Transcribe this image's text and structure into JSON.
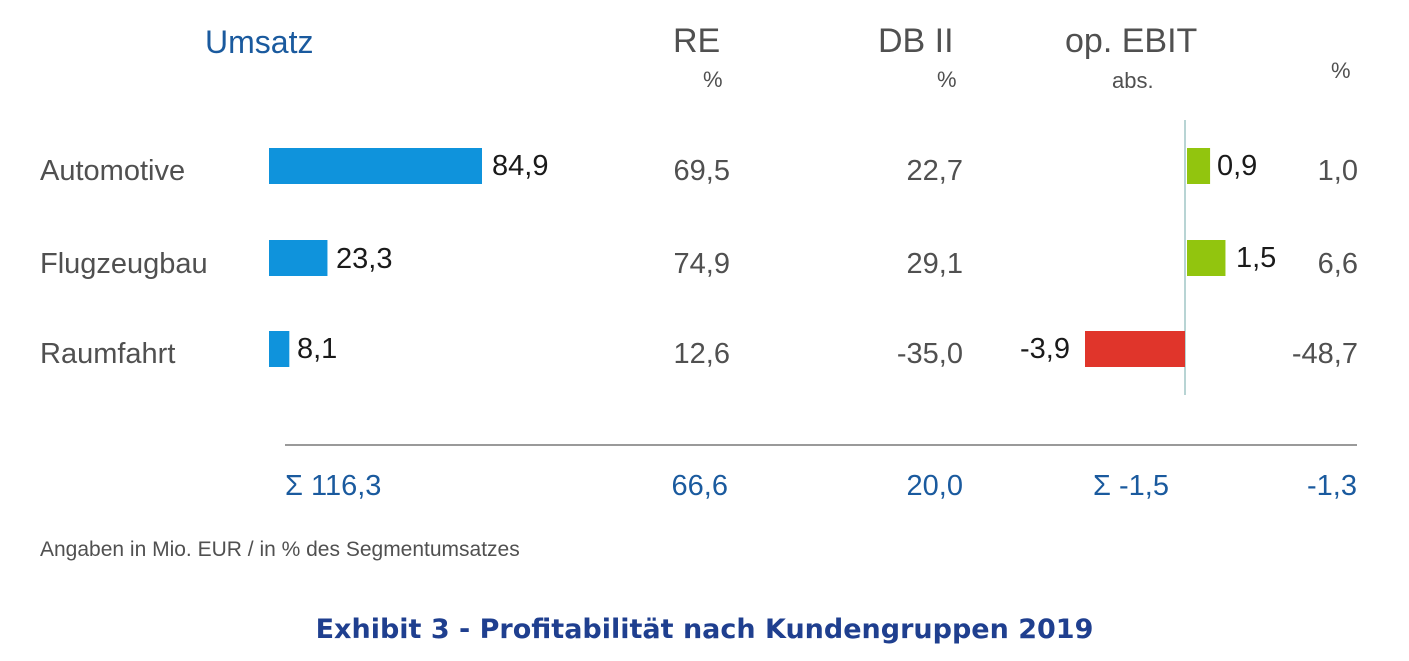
{
  "chart_data": {
    "type": "table",
    "headers": {
      "umsatz": "Umsatz",
      "re": "RE",
      "re_unit": "%",
      "db": "DB II",
      "db_unit": "%",
      "ebit": "op. EBIT",
      "ebit_abs": "abs.",
      "ebit_pct": "%"
    },
    "categories": [
      "Automotive",
      "Flugzeugbau",
      "Raumfahrt"
    ],
    "series": [
      {
        "name": "Umsatz",
        "values": [
          84.9,
          23.3,
          8.1
        ]
      },
      {
        "name": "RE",
        "values": [
          69.5,
          74.9,
          12.6
        ]
      },
      {
        "name": "DB II",
        "values": [
          22.7,
          29.1,
          -35.0
        ]
      },
      {
        "name": "op. EBIT abs.",
        "values": [
          0.9,
          1.5,
          -3.9
        ]
      },
      {
        "name": "op. EBIT %",
        "values": [
          1.0,
          6.6,
          -48.7
        ]
      }
    ],
    "display": {
      "umsatz": [
        "84,9",
        "23,3",
        "8,1"
      ],
      "re": [
        "69,5",
        "74,9",
        "12,6"
      ],
      "db": [
        "22,7",
        "29,1",
        "-35,0"
      ],
      "ebit_abs": [
        "0,9",
        "1,5",
        "-3,9"
      ],
      "ebit_pct": [
        "1,0",
        "6,6",
        "-48,7"
      ]
    },
    "totals": {
      "umsatz": "Σ 116,3",
      "re": "66,6",
      "db": "20,0",
      "ebit_abs": "Σ -1,5",
      "ebit_pct": "-1,3"
    },
    "colors": {
      "umsatz_bar": "#0f93dc",
      "ebit_positive": "#92c50e",
      "ebit_negative": "#e0352b",
      "totals_text": "#1a5a9e",
      "axis": "#b8d4d4"
    }
  },
  "footnote": "Angaben in Mio. EUR / in % des Segmentumsatzes",
  "caption": "Exhibit 3 - Profitabilität nach Kundengruppen 2019"
}
